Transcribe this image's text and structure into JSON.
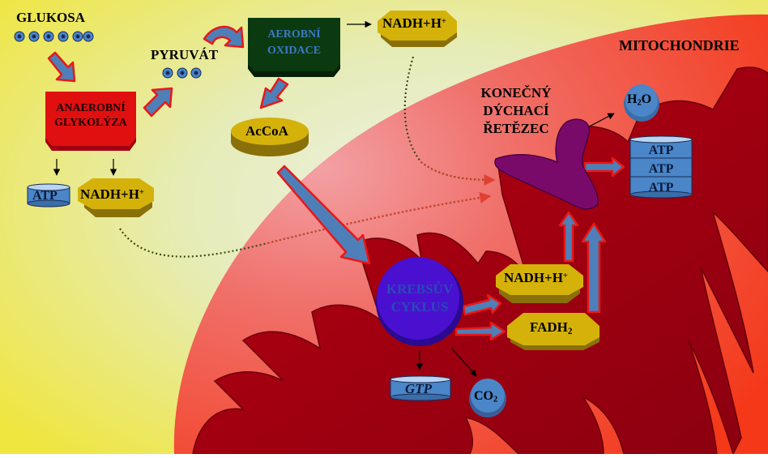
{
  "labels": {
    "glukosa": "GLUKOSA",
    "pyruvat": "PYRUVÁT",
    "anaerobni_line1": "ANAEROBNÍ",
    "anaerobni_line2": "GLYKOLÝZA",
    "aerobni_line1": "AEROBNÍ",
    "aerobni_line2": "OXIDACE",
    "nadh": "NADH+H",
    "nadh_sup": "+",
    "atp": "ATP",
    "accoa": "AcCoA",
    "mitochondrie": "MITOCHONDRIE",
    "dychaci_line1": "KONEČNÝ",
    "dychaci_line2": "DÝCHACÍ",
    "dychaci_line3": "ŘETĚZEC",
    "water_h": "H",
    "water_sub": "2",
    "water_o": "O",
    "krebs_line1": "KREBSŮV",
    "krebs_line2": "CYKLUS",
    "fadh": "FADH",
    "fadh_sub": "2",
    "gtp": "GTP",
    "co2_c": "CO",
    "co2_sub": "2"
  },
  "atp_stack": [
    "ATP",
    "ATP",
    "ATP"
  ],
  "colors": {
    "background_left": "#f0e84a",
    "background_mid": "#e8ecc8",
    "mitochondrion_outer": "#f05a4a",
    "mitochondrion_inner": "#b00010",
    "arrow_fill": "#4f7fb8",
    "arrow_outline": "#e81818",
    "molecule_gold": "#d4b20a",
    "anaerobic_box": "#e01010",
    "aerobic_box": "#0c3a10",
    "krebs_circle": "#4a10d0",
    "respiratory_chain": "#7a0a6a",
    "atp_blue": "#4a86c8"
  }
}
